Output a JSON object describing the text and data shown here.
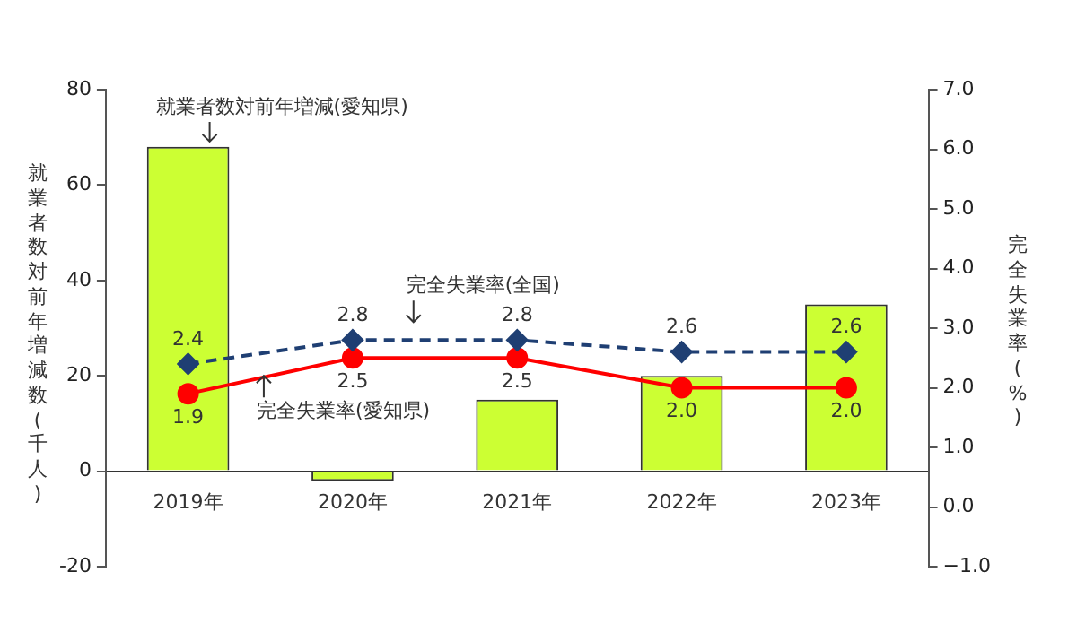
{
  "chart_data": {
    "type": "bar",
    "categories": [
      "2019年",
      "2020年",
      "2021年",
      "2022年",
      "2023年"
    ],
    "ylabel": "就業者数対前年増減数(千人)",
    "y2label": "完全失業率(%)",
    "series": [
      {
        "name": "就業者数対前年増減(愛知県)",
        "color": "#ccff33",
        "values": [
          68,
          -2,
          15,
          20,
          35
        ]
      },
      {
        "name": "完全失業率(全国)",
        "type": "line",
        "axis": "y2",
        "color": "#1f3f73",
        "marker": "diamond",
        "line_style": "dashed",
        "values": [
          2.4,
          2.8,
          2.8,
          2.6,
          2.6
        ],
        "value_labels": [
          "2.4",
          "2.8",
          "2.8",
          "2.6",
          "2.6"
        ]
      },
      {
        "name": "完全失業率(愛知県)",
        "type": "line",
        "axis": "y2",
        "color": "#ff0000",
        "marker": "circle",
        "line_style": "solid",
        "values": [
          1.9,
          2.5,
          2.5,
          2.0,
          2.0
        ],
        "value_labels": [
          "1.9",
          "2.5",
          "2.5",
          "2.0",
          "2.0"
        ]
      }
    ],
    "ylim": [
      -20,
      80
    ],
    "yticks": [
      -20,
      0,
      20,
      40,
      60,
      80
    ],
    "y2lim": [
      -1,
      7
    ],
    "y2ticks": [
      {
        "value": -1,
        "label": "−1.0"
      },
      {
        "value": 0,
        "label": "0.0"
      },
      {
        "value": 1,
        "label": "1.0"
      },
      {
        "value": 2,
        "label": "2.0"
      },
      {
        "value": 3,
        "label": "3.0"
      },
      {
        "value": 4,
        "label": "4.0"
      },
      {
        "value": 5,
        "label": "5.0"
      },
      {
        "value": 6,
        "label": "6.0"
      },
      {
        "value": 7,
        "label": "7.0"
      }
    ],
    "grid": false,
    "legend": false
  }
}
